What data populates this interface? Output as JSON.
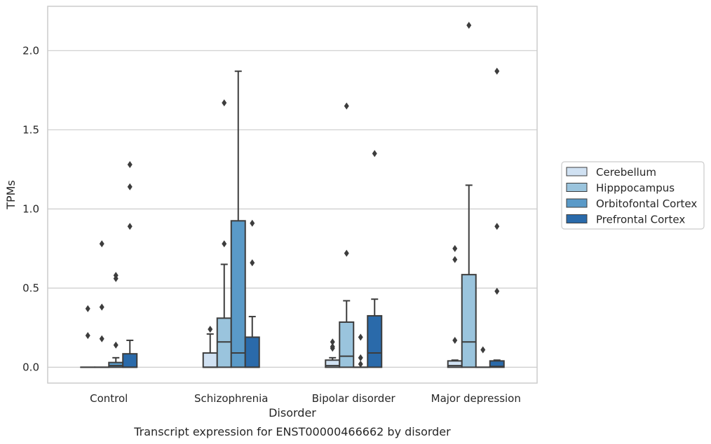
{
  "caption": "Transcript expression for ENST00000466662 by disorder",
  "chart_data": {
    "type": "box",
    "title": "",
    "xlabel": "Disorder",
    "ylabel": "TPMs",
    "ylim": [
      -0.1,
      2.28
    ],
    "yticks": [
      0.0,
      0.5,
      1.0,
      1.5,
      2.0
    ],
    "ytick_labels": [
      "0.0",
      "0.5",
      "1.0",
      "1.5",
      "2.0"
    ],
    "grid": "horizontal",
    "legend_position": "right",
    "categories": [
      "Control",
      "Schizophrenia",
      "Bipolar disorder",
      "Major depression"
    ],
    "series": [
      {
        "name": "Cerebellum",
        "color": "#d0e1f2",
        "boxes": [
          {
            "q1": 0,
            "median": 0,
            "q3": 0,
            "whislo": 0,
            "whishi": 0,
            "fliers": [
              0.37,
              0.2
            ]
          },
          {
            "q1": 0,
            "median": 0,
            "q3": 0.09,
            "whislo": 0,
            "whishi": 0.21,
            "fliers": [
              0.24
            ]
          },
          {
            "q1": 0,
            "median": 0.01,
            "q3": 0.045,
            "whislo": 0,
            "whishi": 0.06,
            "fliers": [
              0.16,
              0.13,
              0.12
            ]
          },
          {
            "q1": 0,
            "median": 0.01,
            "q3": 0.04,
            "whislo": 0,
            "whishi": 0.045,
            "fliers": [
              0.75,
              0.68,
              0.17
            ]
          }
        ]
      },
      {
        "name": "Hipppocampus",
        "color": "#9ac4dd",
        "boxes": [
          {
            "q1": 0,
            "median": 0,
            "q3": 0,
            "whislo": 0,
            "whishi": 0,
            "fliers": [
              0.78,
              0.38,
              0.18
            ]
          },
          {
            "q1": 0,
            "median": 0.16,
            "q3": 0.31,
            "whislo": 0,
            "whishi": 0.65,
            "fliers": [
              1.67,
              0.78
            ]
          },
          {
            "q1": 0,
            "median": 0.07,
            "q3": 0.285,
            "whislo": 0,
            "whishi": 0.42,
            "fliers": [
              1.65,
              0.72
            ]
          },
          {
            "q1": 0,
            "median": 0.16,
            "q3": 0.585,
            "whislo": 0,
            "whishi": 1.15,
            "fliers": [
              2.16
            ]
          }
        ]
      },
      {
        "name": "Orbitofontal Cortex",
        "color": "#5a9ac8",
        "boxes": [
          {
            "q1": 0,
            "median": 0.01,
            "q3": 0.03,
            "whislo": 0,
            "whishi": 0.06,
            "fliers": [
              0.58,
              0.56,
              0.14
            ]
          },
          {
            "q1": 0,
            "median": 0.09,
            "q3": 0.925,
            "whislo": 0,
            "whishi": 1.87,
            "fliers": []
          },
          {
            "q1": 0,
            "median": 0,
            "q3": 0,
            "whislo": 0,
            "whishi": 0,
            "fliers": [
              0.19,
              0.06,
              0.02
            ]
          },
          {
            "q1": 0,
            "median": 0,
            "q3": 0,
            "whislo": 0,
            "whishi": 0,
            "fliers": [
              0.11
            ]
          }
        ]
      },
      {
        "name": "Prefrontal Cortex",
        "color": "#2a6aaa",
        "boxes": [
          {
            "q1": 0,
            "median": 0,
            "q3": 0.085,
            "whislo": 0,
            "whishi": 0.17,
            "fliers": [
              1.28,
              1.14,
              0.89
            ]
          },
          {
            "q1": 0,
            "median": 0,
            "q3": 0.19,
            "whislo": 0,
            "whishi": 0.32,
            "fliers": [
              0.91,
              0.66
            ]
          },
          {
            "q1": 0,
            "median": 0.09,
            "q3": 0.325,
            "whislo": 0,
            "whishi": 0.43,
            "fliers": [
              1.35
            ]
          },
          {
            "q1": 0,
            "median": 0.005,
            "q3": 0.04,
            "whislo": 0,
            "whishi": 0.045,
            "fliers": [
              1.87,
              0.89,
              0.48
            ]
          }
        ]
      }
    ]
  }
}
